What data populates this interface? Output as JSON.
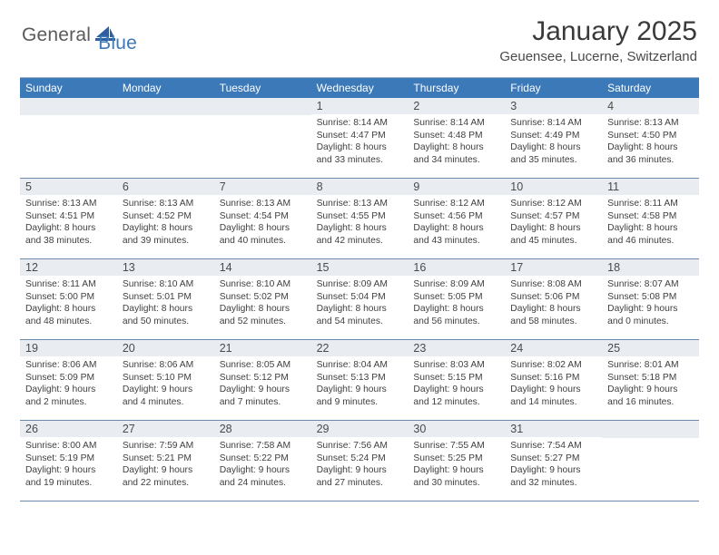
{
  "brand": {
    "part1": "General",
    "part2": "Blue"
  },
  "title": "January 2025",
  "location": "Geuensee, Lucerne, Switzerland",
  "colors": {
    "header_bg": "#3b79b8",
    "daynum_bg": "#e9edf1",
    "row_border": "#6c8aab",
    "text": "#333333"
  },
  "weekdays": [
    "Sunday",
    "Monday",
    "Tuesday",
    "Wednesday",
    "Thursday",
    "Friday",
    "Saturday"
  ],
  "weeks": [
    [
      {
        "n": "",
        "sr": "",
        "ss": "",
        "dl": ""
      },
      {
        "n": "",
        "sr": "",
        "ss": "",
        "dl": ""
      },
      {
        "n": "",
        "sr": "",
        "ss": "",
        "dl": ""
      },
      {
        "n": "1",
        "sr": "Sunrise: 8:14 AM",
        "ss": "Sunset: 4:47 PM",
        "dl": "Daylight: 8 hours and 33 minutes."
      },
      {
        "n": "2",
        "sr": "Sunrise: 8:14 AM",
        "ss": "Sunset: 4:48 PM",
        "dl": "Daylight: 8 hours and 34 minutes."
      },
      {
        "n": "3",
        "sr": "Sunrise: 8:14 AM",
        "ss": "Sunset: 4:49 PM",
        "dl": "Daylight: 8 hours and 35 minutes."
      },
      {
        "n": "4",
        "sr": "Sunrise: 8:13 AM",
        "ss": "Sunset: 4:50 PM",
        "dl": "Daylight: 8 hours and 36 minutes."
      }
    ],
    [
      {
        "n": "5",
        "sr": "Sunrise: 8:13 AM",
        "ss": "Sunset: 4:51 PM",
        "dl": "Daylight: 8 hours and 38 minutes."
      },
      {
        "n": "6",
        "sr": "Sunrise: 8:13 AM",
        "ss": "Sunset: 4:52 PM",
        "dl": "Daylight: 8 hours and 39 minutes."
      },
      {
        "n": "7",
        "sr": "Sunrise: 8:13 AM",
        "ss": "Sunset: 4:54 PM",
        "dl": "Daylight: 8 hours and 40 minutes."
      },
      {
        "n": "8",
        "sr": "Sunrise: 8:13 AM",
        "ss": "Sunset: 4:55 PM",
        "dl": "Daylight: 8 hours and 42 minutes."
      },
      {
        "n": "9",
        "sr": "Sunrise: 8:12 AM",
        "ss": "Sunset: 4:56 PM",
        "dl": "Daylight: 8 hours and 43 minutes."
      },
      {
        "n": "10",
        "sr": "Sunrise: 8:12 AM",
        "ss": "Sunset: 4:57 PM",
        "dl": "Daylight: 8 hours and 45 minutes."
      },
      {
        "n": "11",
        "sr": "Sunrise: 8:11 AM",
        "ss": "Sunset: 4:58 PM",
        "dl": "Daylight: 8 hours and 46 minutes."
      }
    ],
    [
      {
        "n": "12",
        "sr": "Sunrise: 8:11 AM",
        "ss": "Sunset: 5:00 PM",
        "dl": "Daylight: 8 hours and 48 minutes."
      },
      {
        "n": "13",
        "sr": "Sunrise: 8:10 AM",
        "ss": "Sunset: 5:01 PM",
        "dl": "Daylight: 8 hours and 50 minutes."
      },
      {
        "n": "14",
        "sr": "Sunrise: 8:10 AM",
        "ss": "Sunset: 5:02 PM",
        "dl": "Daylight: 8 hours and 52 minutes."
      },
      {
        "n": "15",
        "sr": "Sunrise: 8:09 AM",
        "ss": "Sunset: 5:04 PM",
        "dl": "Daylight: 8 hours and 54 minutes."
      },
      {
        "n": "16",
        "sr": "Sunrise: 8:09 AM",
        "ss": "Sunset: 5:05 PM",
        "dl": "Daylight: 8 hours and 56 minutes."
      },
      {
        "n": "17",
        "sr": "Sunrise: 8:08 AM",
        "ss": "Sunset: 5:06 PM",
        "dl": "Daylight: 8 hours and 58 minutes."
      },
      {
        "n": "18",
        "sr": "Sunrise: 8:07 AM",
        "ss": "Sunset: 5:08 PM",
        "dl": "Daylight: 9 hours and 0 minutes."
      }
    ],
    [
      {
        "n": "19",
        "sr": "Sunrise: 8:06 AM",
        "ss": "Sunset: 5:09 PM",
        "dl": "Daylight: 9 hours and 2 minutes."
      },
      {
        "n": "20",
        "sr": "Sunrise: 8:06 AM",
        "ss": "Sunset: 5:10 PM",
        "dl": "Daylight: 9 hours and 4 minutes."
      },
      {
        "n": "21",
        "sr": "Sunrise: 8:05 AM",
        "ss": "Sunset: 5:12 PM",
        "dl": "Daylight: 9 hours and 7 minutes."
      },
      {
        "n": "22",
        "sr": "Sunrise: 8:04 AM",
        "ss": "Sunset: 5:13 PM",
        "dl": "Daylight: 9 hours and 9 minutes."
      },
      {
        "n": "23",
        "sr": "Sunrise: 8:03 AM",
        "ss": "Sunset: 5:15 PM",
        "dl": "Daylight: 9 hours and 12 minutes."
      },
      {
        "n": "24",
        "sr": "Sunrise: 8:02 AM",
        "ss": "Sunset: 5:16 PM",
        "dl": "Daylight: 9 hours and 14 minutes."
      },
      {
        "n": "25",
        "sr": "Sunrise: 8:01 AM",
        "ss": "Sunset: 5:18 PM",
        "dl": "Daylight: 9 hours and 16 minutes."
      }
    ],
    [
      {
        "n": "26",
        "sr": "Sunrise: 8:00 AM",
        "ss": "Sunset: 5:19 PM",
        "dl": "Daylight: 9 hours and 19 minutes."
      },
      {
        "n": "27",
        "sr": "Sunrise: 7:59 AM",
        "ss": "Sunset: 5:21 PM",
        "dl": "Daylight: 9 hours and 22 minutes."
      },
      {
        "n": "28",
        "sr": "Sunrise: 7:58 AM",
        "ss": "Sunset: 5:22 PM",
        "dl": "Daylight: 9 hours and 24 minutes."
      },
      {
        "n": "29",
        "sr": "Sunrise: 7:56 AM",
        "ss": "Sunset: 5:24 PM",
        "dl": "Daylight: 9 hours and 27 minutes."
      },
      {
        "n": "30",
        "sr": "Sunrise: 7:55 AM",
        "ss": "Sunset: 5:25 PM",
        "dl": "Daylight: 9 hours and 30 minutes."
      },
      {
        "n": "31",
        "sr": "Sunrise: 7:54 AM",
        "ss": "Sunset: 5:27 PM",
        "dl": "Daylight: 9 hours and 32 minutes."
      },
      {
        "n": "",
        "sr": "",
        "ss": "",
        "dl": ""
      }
    ]
  ]
}
